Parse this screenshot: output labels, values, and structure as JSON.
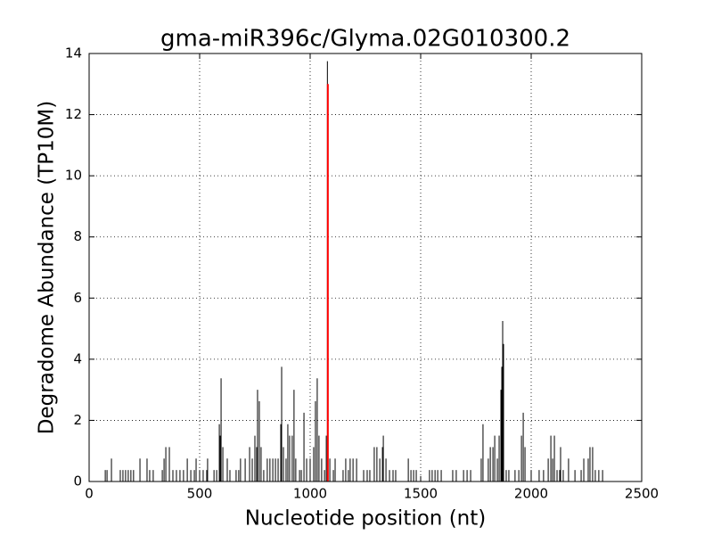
{
  "chart_data": {
    "type": "spike",
    "title": "gma-miR396c/Glyma.02G010300.2",
    "xlabel": "Nucleotide position (nt)",
    "ylabel": "Degradome Abundance (TP10M)",
    "xlim": [
      0,
      2500
    ],
    "xticks": [
      0,
      500,
      1000,
      1500,
      2000,
      2500
    ],
    "ylim": [
      0,
      14
    ],
    "yticks": [
      0,
      2,
      4,
      6,
      8,
      10,
      12,
      14
    ],
    "grid": true,
    "series": [
      {
        "color": "#000000",
        "x": [
          73,
          81,
          101,
          141,
          153,
          165,
          177,
          189,
          201,
          230,
          262,
          274,
          290,
          331,
          339,
          347,
          363,
          379,
          395,
          411,
          427,
          444,
          460,
          476,
          484,
          500,
          516,
          532,
          536,
          565,
          577,
          589,
          593,
          597,
          605,
          625,
          637,
          665,
          677,
          685,
          706,
          726,
          738,
          750,
          758,
          762,
          770,
          778,
          790,
          806,
          818,
          831,
          843,
          855,
          867,
          871,
          879,
          891,
          899,
          907,
          919,
          927,
          935,
          952,
          960,
          972,
          984,
          1000,
          1016,
          1024,
          1032,
          1040,
          1052,
          1065,
          1073,
          1078,
          1089,
          1105,
          1113,
          1149,
          1161,
          1173,
          1181,
          1194,
          1210,
          1242,
          1258,
          1270,
          1290,
          1302,
          1315,
          1327,
          1331,
          1343,
          1359,
          1375,
          1387,
          1444,
          1456,
          1468,
          1480,
          1540,
          1552,
          1565,
          1577,
          1593,
          1645,
          1661,
          1694,
          1710,
          1726,
          1774,
          1782,
          1806,
          1815,
          1827,
          1835,
          1847,
          1855,
          1863,
          1867,
          1871,
          1875,
          1887,
          1899,
          1927,
          1944,
          1956,
          1964,
          1972,
          2000,
          2036,
          2056,
          2077,
          2089,
          2097,
          2105,
          2117,
          2129,
          2133,
          2145,
          2169,
          2198,
          2226,
          2238,
          2258,
          2266,
          2278,
          2290,
          2306,
          2323
        ],
        "values": [
          0.375,
          0.375,
          0.75,
          0.375,
          0.375,
          0.375,
          0.375,
          0.375,
          0.375,
          0.75,
          0.75,
          0.375,
          0.375,
          0.375,
          0.75,
          1.125,
          1.125,
          0.375,
          0.375,
          0.375,
          0.375,
          0.75,
          0.375,
          0.375,
          0.75,
          0.375,
          0.375,
          0.375,
          0.75,
          0.375,
          0.375,
          1.875,
          1.5,
          3.375,
          1.125,
          0.75,
          0.375,
          0.375,
          0.375,
          0.75,
          0.75,
          1.125,
          0.75,
          1.5,
          1.125,
          3.0,
          2.625,
          1.125,
          0.375,
          0.75,
          0.75,
          0.75,
          0.75,
          0.75,
          1.875,
          3.75,
          1.125,
          0.75,
          1.875,
          1.5,
          1.5,
          3.0,
          0.75,
          0.375,
          0.375,
          2.25,
          0.75,
          0.75,
          1.125,
          2.625,
          3.375,
          1.5,
          0.75,
          0.375,
          1.5,
          13.75,
          0.75,
          0.375,
          0.75,
          0.375,
          0.75,
          0.375,
          0.75,
          0.75,
          0.75,
          0.375,
          0.375,
          0.375,
          1.125,
          1.125,
          0.75,
          1.125,
          1.5,
          0.75,
          0.375,
          0.375,
          0.375,
          0.75,
          0.375,
          0.375,
          0.375,
          0.375,
          0.375,
          0.375,
          0.375,
          0.375,
          0.375,
          0.375,
          0.375,
          0.375,
          0.375,
          0.75,
          1.875,
          0.75,
          1.125,
          1.125,
          1.5,
          0.75,
          1.5,
          3.0,
          3.75,
          5.25,
          4.5,
          0.375,
          0.375,
          0.375,
          0.375,
          1.5,
          2.25,
          1.125,
          0.375,
          0.375,
          0.375,
          0.75,
          1.5,
          0.75,
          1.5,
          0.375,
          0.375,
          1.125,
          0.375,
          0.75,
          0.375,
          0.375,
          0.75,
          0.75,
          1.125,
          1.125,
          0.375,
          0.375,
          0.375
        ]
      },
      {
        "color": "#ff0000",
        "x": [
          1080
        ],
        "values": [
          13.0
        ]
      }
    ]
  }
}
